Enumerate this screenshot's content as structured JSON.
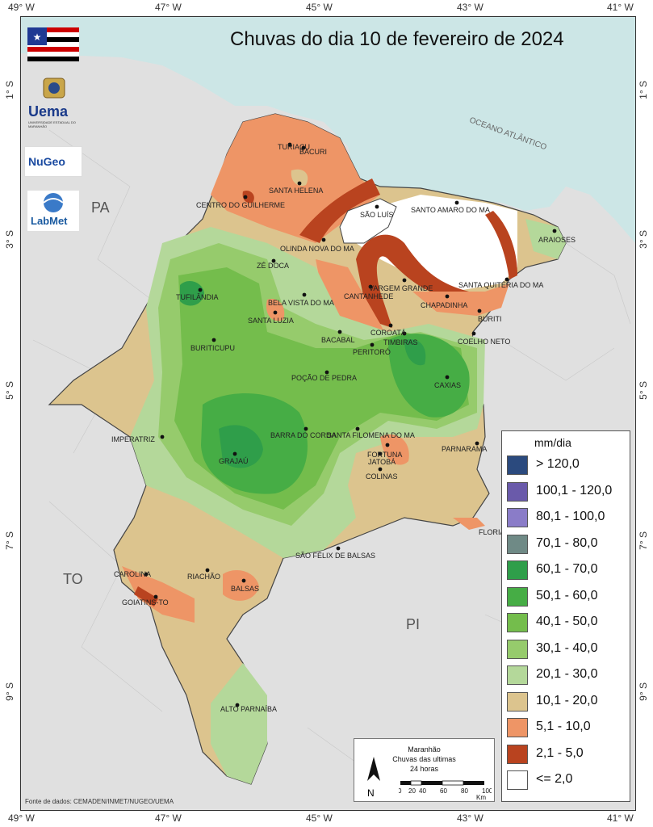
{
  "title": "Chuvas do dia 10 de fevereiro de 2024",
  "axis_ticks": {
    "lon": [
      "49° W",
      "47° W",
      "45° W",
      "43° W",
      "41° W"
    ],
    "lat": [
      "1° S",
      "3° S",
      "5° S",
      "7° S",
      "9° S"
    ]
  },
  "regions": {
    "pa": "PA",
    "to": "TO",
    "pi": "PI",
    "ocean": "OCEANO ATLÂNTICO"
  },
  "cities": [
    {
      "name": "TURIAÇU"
    },
    {
      "name": "BACURI"
    },
    {
      "name": "SANTA HELENA"
    },
    {
      "name": "CENTRO DO GUILHERME"
    },
    {
      "name": "SÃO LUÍS"
    },
    {
      "name": "SANTO AMARO DO MA"
    },
    {
      "name": "ARAIOSES"
    },
    {
      "name": "OLINDA NOVA DO MA"
    },
    {
      "name": "ZÉ DOCA"
    },
    {
      "name": "VARGEM GRANDE"
    },
    {
      "name": "SANTA QUITÉRIA DO MA"
    },
    {
      "name": "CANTANHEDE"
    },
    {
      "name": "TUFILÂNDIA"
    },
    {
      "name": "BELA VISTA DO MA"
    },
    {
      "name": "CHAPADINHA"
    },
    {
      "name": "BURITI"
    },
    {
      "name": "SANTA LUZIA"
    },
    {
      "name": "COROATÁ"
    },
    {
      "name": "BACABAL"
    },
    {
      "name": "TIMBIRAS"
    },
    {
      "name": "COELHO NETO"
    },
    {
      "name": "BURITICUPU"
    },
    {
      "name": "PERITORÓ"
    },
    {
      "name": "POÇÃO DE PEDRA"
    },
    {
      "name": "CAXIAS"
    },
    {
      "name": "IMPERATRIZ"
    },
    {
      "name": "BARRA DO CORDA"
    },
    {
      "name": "SANTA FILOMENA DO MA"
    },
    {
      "name": "PARNARAMA"
    },
    {
      "name": "FORTUNA"
    },
    {
      "name": "GRAJAÚ"
    },
    {
      "name": "JATOBÁ"
    },
    {
      "name": "COLINAS"
    },
    {
      "name": "FLORIANO-PI"
    },
    {
      "name": "SÃO FÉLIX DE BALSAS"
    },
    {
      "name": "CAROLINA"
    },
    {
      "name": "RIACHÃO"
    },
    {
      "name": "BALSAS"
    },
    {
      "name": "GOIATINS-TO"
    },
    {
      "name": "ALTO PARNAÍBA"
    }
  ],
  "legend": {
    "title": "mm/dia",
    "items": [
      {
        "label": "> 120,0",
        "color": "#2b4a7e"
      },
      {
        "label": "100,1 - 120,0",
        "color": "#6a5aaa"
      },
      {
        "label": "80,1 - 100,0",
        "color": "#8a7cc8"
      },
      {
        "label": "70,1 - 80,0",
        "color": "#6f8a86"
      },
      {
        "label": "60,1 - 70,0",
        "color": "#2f9e4a"
      },
      {
        "label": "50,1 - 60,0",
        "color": "#46ad45"
      },
      {
        "label": "40,1 - 50,0",
        "color": "#74bd4c"
      },
      {
        "label": "30,1 - 40,0",
        "color": "#96cb6c"
      },
      {
        "label": "20,1 - 30,0",
        "color": "#b4d89a"
      },
      {
        "label": "10,1 - 20,0",
        "color": "#dcc48e"
      },
      {
        "label": "5,1 - 10,0",
        "color": "#ee9566"
      },
      {
        "label": "2,1 - 5,0",
        "color": "#b9431f"
      },
      {
        "label": "<= 2,0",
        "color": "#ffffff"
      }
    ]
  },
  "scalebox": {
    "line1": "Maranhão",
    "line2": "Chuvas das ultimas",
    "line3": "24 horas",
    "north": "N",
    "scale_labels": [
      "0",
      "20",
      "40",
      "60",
      "80",
      "100"
    ],
    "scale_unit": "Km"
  },
  "logos": {
    "uema": "Uema",
    "uema_sub": "UNIVERSIDADE ESTADUAL DO MARANHÃO",
    "nugeo": "NuGeo",
    "labmet": "LabMet"
  },
  "source": "Fonte de dados: CEMADEN/INMET/NUGEO/UEMA",
  "colors": {
    "sea": "#cce6e6",
    "land_outside": "#e0e0e0",
    "border": "#444444"
  }
}
